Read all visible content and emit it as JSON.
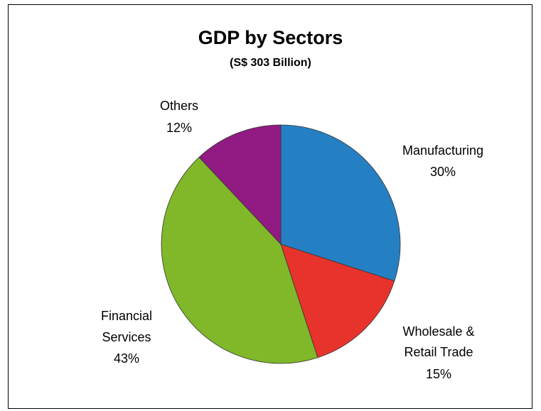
{
  "chart_data": {
    "type": "pie",
    "title": "GDP by Sectors",
    "subtitle": "(S$ 303 Billion)",
    "slices": [
      {
        "label": "Manufacturing",
        "value": 30,
        "value_label": "30%",
        "color": "#2580c3"
      },
      {
        "label": "Wholesale & Retail Trade",
        "value": 15,
        "value_label": "15%",
        "color": "#e8322c"
      },
      {
        "label": "Financial Services",
        "value": 43,
        "value_label": "43%",
        "color": "#80b829"
      },
      {
        "label": "Others",
        "value": 12,
        "value_label": "12%",
        "color": "#911b82"
      }
    ],
    "start_angle": "12 o'clock",
    "direction": "clockwise",
    "legend": "none"
  }
}
